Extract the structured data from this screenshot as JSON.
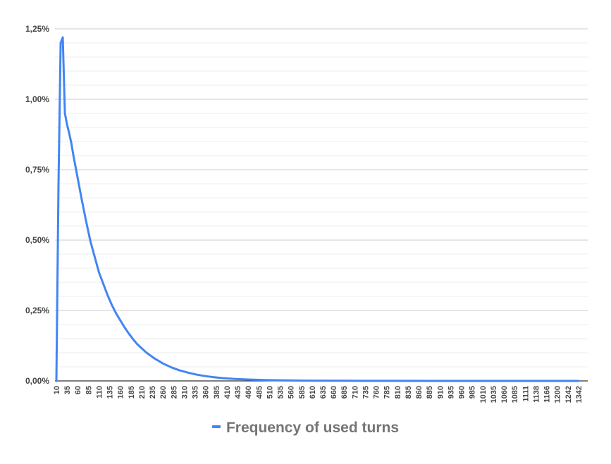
{
  "chart_data": {
    "type": "line",
    "title": "",
    "xlabel": "",
    "ylabel": "",
    "series": [
      {
        "name": "Frequency of used turns",
        "color": "#4285f4",
        "x": [
          10,
          15,
          20,
          25,
          30,
          35,
          40,
          45,
          50,
          55,
          60,
          70,
          80,
          90,
          100,
          110,
          120,
          130,
          140,
          150,
          160,
          170,
          180,
          190,
          200,
          220,
          240,
          260,
          280,
          300,
          320,
          340,
          360,
          380,
          400,
          430,
          460,
          500,
          550,
          600,
          700,
          800,
          1000,
          1200,
          1342
        ],
        "values": [
          0.0,
          0.7,
          1.2,
          1.22,
          0.95,
          0.91,
          0.88,
          0.845,
          0.8,
          0.76,
          0.72,
          0.64,
          0.565,
          0.495,
          0.44,
          0.385,
          0.345,
          0.305,
          0.27,
          0.24,
          0.215,
          0.19,
          0.168,
          0.148,
          0.13,
          0.102,
          0.08,
          0.062,
          0.048,
          0.037,
          0.029,
          0.022,
          0.017,
          0.013,
          0.01,
          0.007,
          0.005,
          0.003,
          0.002,
          0.001,
          0.0005,
          0.0002,
          0.0001,
          0.0,
          0.0
        ]
      }
    ],
    "y_ticks": [
      "0,00%",
      "0,25%",
      "0,50%",
      "0,75%",
      "1,00%",
      "1,25%"
    ],
    "ylim": [
      0,
      1.25
    ],
    "y_minor_step": 0.05,
    "x_ticks": [
      "10",
      "35",
      "60",
      "85",
      "110",
      "135",
      "160",
      "185",
      "210",
      "235",
      "260",
      "285",
      "310",
      "335",
      "360",
      "385",
      "410",
      "435",
      "460",
      "485",
      "510",
      "535",
      "560",
      "585",
      "610",
      "635",
      "660",
      "685",
      "710",
      "735",
      "760",
      "785",
      "810",
      "835",
      "860",
      "885",
      "910",
      "935",
      "960",
      "985",
      "1010",
      "1035",
      "1060",
      "1085",
      "1111",
      "1138",
      "1166",
      "1200",
      "1242",
      "1342"
    ],
    "x_tick_values": [
      10,
      35,
      60,
      85,
      110,
      135,
      160,
      185,
      210,
      235,
      260,
      285,
      310,
      335,
      360,
      385,
      410,
      435,
      460,
      485,
      510,
      535,
      560,
      585,
      610,
      635,
      660,
      685,
      710,
      735,
      760,
      785,
      810,
      835,
      860,
      885,
      910,
      935,
      960,
      985,
      1010,
      1035,
      1060,
      1085,
      1111,
      1138,
      1166,
      1200,
      1242,
      1342
    ],
    "x_axis": "categorical",
    "grid": true,
    "legend_position": "bottom"
  }
}
